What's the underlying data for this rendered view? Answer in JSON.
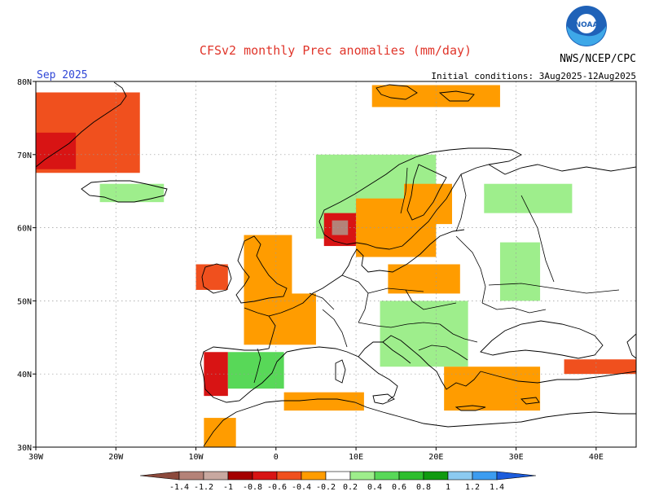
{
  "header": {
    "title": "CFSv2 monthly Prec anomalies (mm/day)",
    "agency": "NWS/NCEP/CPC",
    "logo_text": "NOAA",
    "month": "Sep 2025",
    "initial_conditions": "Initial conditions: 3Aug2025-12Aug2025"
  },
  "chart_data": {
    "type": "heatmap",
    "title": "CFSv2 monthly Prec anomalies (mm/day)",
    "units": "mm/day",
    "map_region": "Europe",
    "lon_range": [
      -30,
      45
    ],
    "lat_range": [
      30,
      80
    ],
    "lon_ticks": [
      "30W",
      "20W",
      "10W",
      "0",
      "10E",
      "20E",
      "30E",
      "40E"
    ],
    "lat_ticks": [
      "30N",
      "40N",
      "50N",
      "60N",
      "70N",
      "80N"
    ],
    "grid": true,
    "colorbar": {
      "ticks": [
        "-1.4",
        "-1.2",
        "-1",
        "-0.8",
        "-0.6",
        "-0.4",
        "-0.2",
        "0.2",
        "0.4",
        "0.6",
        "0.8",
        "1",
        "1.2",
        "1.4"
      ],
      "levels": [
        -1.4,
        -1.2,
        -1.0,
        -0.8,
        -0.6,
        -0.4,
        -0.2,
        0.2,
        0.4,
        0.6,
        0.8,
        1.0,
        1.2,
        1.4
      ],
      "colors": [
        "#8c4a3c",
        "#b48278",
        "#c8a8a0",
        "#a40000",
        "#d81414",
        "#f0501e",
        "#ff9c00",
        "#ffffff",
        "#9eee8c",
        "#58d858",
        "#2ebe2e",
        "#109a10",
        "#8ccaf0",
        "#3c9cf0",
        "#1c5cdc"
      ]
    },
    "anomaly_regions": [
      {
        "name": "Greenland east coast",
        "lon": [
          -31,
          -17
        ],
        "lat": [
          67.5,
          78.5
        ],
        "value": -0.5
      },
      {
        "name": "Greenland southeast",
        "lon": [
          -30,
          -25
        ],
        "lat": [
          68,
          73
        ],
        "value": -0.7
      },
      {
        "name": "Iceland",
        "lon": [
          -22,
          -14
        ],
        "lat": [
          63.5,
          66
        ],
        "value": 0.3
      },
      {
        "name": "Svalbard",
        "lon": [
          12,
          28
        ],
        "lat": [
          76.5,
          79.5
        ],
        "value": -0.3
      },
      {
        "name": "Norway coast",
        "lon": [
          5,
          20
        ],
        "lat": [
          58.5,
          70
        ],
        "value": 0.3
      },
      {
        "name": "Southern Norway",
        "lon": [
          6,
          12
        ],
        "lat": [
          57.5,
          62
        ],
        "value": -0.8
      },
      {
        "name": "Southern Norway core",
        "lon": [
          7,
          9
        ],
        "lat": [
          59,
          61
        ],
        "value": -1.3
      },
      {
        "name": "Sweden",
        "lon": [
          10,
          20
        ],
        "lat": [
          56,
          64
        ],
        "value": -0.4
      },
      {
        "name": "Finland",
        "lon": [
          16,
          22
        ],
        "lat": [
          60.5,
          66
        ],
        "value": -0.3
      },
      {
        "name": "Russia north",
        "lon": [
          26,
          37
        ],
        "lat": [
          62,
          66
        ],
        "value": 0.3
      },
      {
        "name": "Ireland",
        "lon": [
          -10,
          -6
        ],
        "lat": [
          51.5,
          55
        ],
        "value": -0.6
      },
      {
        "name": "Great Britain",
        "lon": [
          -4,
          2
        ],
        "lat": [
          50.5,
          59
        ],
        "value": -0.4
      },
      {
        "name": "France",
        "lon": [
          -4,
          5
        ],
        "lat": [
          44,
          51
        ],
        "value": -0.3
      },
      {
        "name": "Poland Baltic",
        "lon": [
          14,
          23
        ],
        "lat": [
          51,
          55
        ],
        "value": -0.3
      },
      {
        "name": "Belarus Ukraine",
        "lon": [
          28,
          33
        ],
        "lat": [
          50,
          58
        ],
        "value": 0.3
      },
      {
        "name": "Central Europe",
        "lon": [
          13,
          24
        ],
        "lat": [
          41,
          50
        ],
        "value": 0.3
      },
      {
        "name": "Iberia west",
        "lon": [
          -9,
          -6
        ],
        "lat": [
          37,
          43
        ],
        "value": -0.7
      },
      {
        "name": "Iberia interior",
        "lon": [
          -6,
          1
        ],
        "lat": [
          38,
          43
        ],
        "value": 0.4
      },
      {
        "name": "North Africa coast",
        "lon": [
          1,
          11
        ],
        "lat": [
          35,
          37.5
        ],
        "value": -0.4
      },
      {
        "name": "Morocco",
        "lon": [
          -9,
          -5
        ],
        "lat": [
          30,
          34
        ],
        "value": -0.3
      },
      {
        "name": "Aegean Turkey",
        "lon": [
          21,
          33
        ],
        "lat": [
          35,
          41
        ],
        "value": -0.4
      },
      {
        "name": "Black Sea south",
        "lon": [
          36,
          45
        ],
        "lat": [
          40,
          42
        ],
        "value": -0.6
      }
    ]
  }
}
